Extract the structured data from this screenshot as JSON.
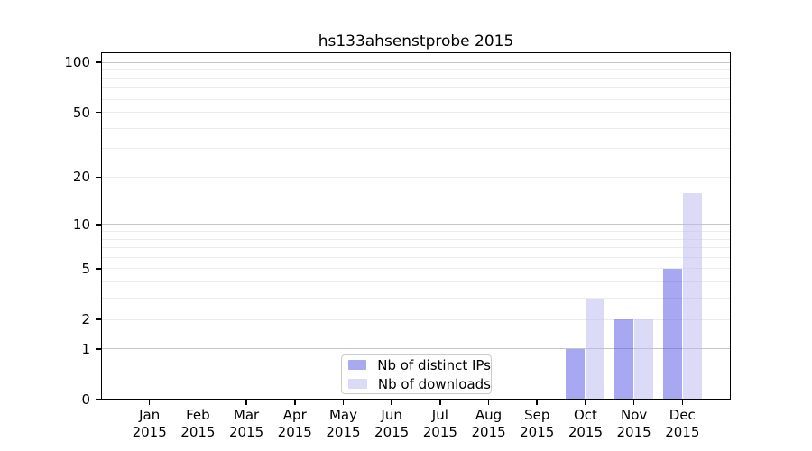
{
  "figure": {
    "title": "hs133ahsenstprobe 2015"
  },
  "legend": {
    "items": [
      {
        "label": "Nb of distinct IPs",
        "swatch_color": "#a9a9f0"
      },
      {
        "label": "Nb of downloads",
        "swatch_color": "#dbdbf7"
      }
    ]
  },
  "chart_data": {
    "type": "bar",
    "title": "hs133ahsenstprobe 2015",
    "xlabel": "",
    "ylabel": "",
    "x_months": [
      "Jan",
      "Feb",
      "Mar",
      "Apr",
      "May",
      "Jun",
      "Jul",
      "Aug",
      "Sep",
      "Oct",
      "Nov",
      "Dec"
    ],
    "x_year": "2015",
    "series": [
      {
        "name": "Nb of distinct IPs",
        "fill": "rgba(81,81,229,0.5)",
        "legend_color": "#a9a9f0",
        "values": [
          0,
          0,
          0,
          0,
          0,
          0,
          0,
          0,
          0,
          1,
          2,
          5
        ]
      },
      {
        "name": "Nb of downloads",
        "fill": "rgba(183,183,241,0.5)",
        "legend_color": "#dbdbf7",
        "values": [
          0,
          0,
          0,
          0,
          0,
          0,
          0,
          0,
          0,
          3,
          2,
          16
        ]
      }
    ],
    "yscale": "log1p",
    "ylim": [
      0,
      114
    ],
    "yticks": [
      0,
      1,
      2,
      5,
      10,
      20,
      50,
      100
    ],
    "gridlines_major": [
      1,
      10,
      100
    ],
    "gridlines_minor": [
      2,
      3,
      4,
      5,
      6,
      7,
      8,
      9,
      20,
      30,
      40,
      50,
      60,
      70,
      80,
      90
    ],
    "grid": true,
    "legend_position": "inside-bottom-center"
  },
  "colors": {
    "grid_major": "#c6c6c6",
    "grid_minor": "#ececec",
    "axis_frame": "#000000",
    "text": "#000000",
    "legend_border": "#cccccc",
    "background": "#ffffff"
  }
}
